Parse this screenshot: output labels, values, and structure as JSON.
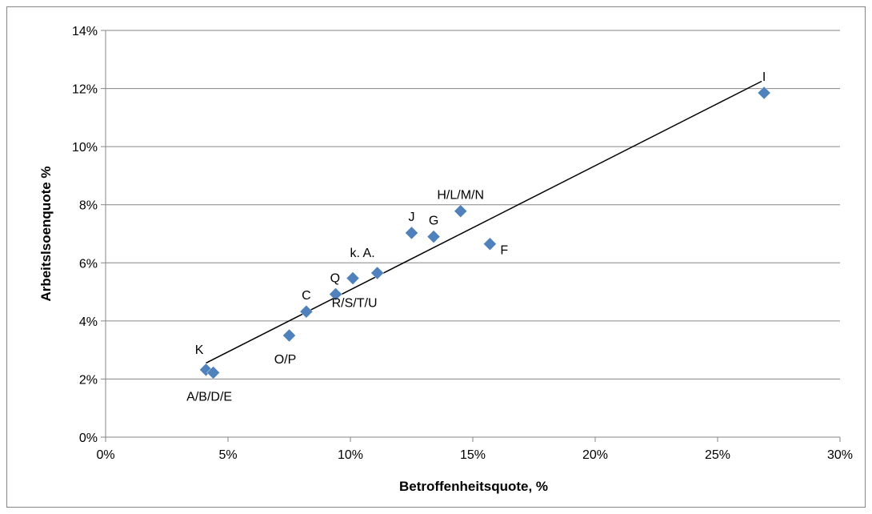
{
  "chart_data": {
    "type": "scatter",
    "xlabel": "Betroffenheitsquote, %",
    "ylabel": "Arbeitslsoenquote %",
    "xlim": [
      0,
      0.3
    ],
    "ylim": [
      0,
      0.14
    ],
    "xticks": [
      {
        "value": 0.0,
        "label": "0%"
      },
      {
        "value": 0.05,
        "label": "5%"
      },
      {
        "value": 0.1,
        "label": "10%"
      },
      {
        "value": 0.15,
        "label": "15%"
      },
      {
        "value": 0.2,
        "label": "20%"
      },
      {
        "value": 0.25,
        "label": "25%"
      },
      {
        "value": 0.3,
        "label": "30%"
      }
    ],
    "yticks": [
      {
        "value": 0.0,
        "label": "0%"
      },
      {
        "value": 0.02,
        "label": "2%"
      },
      {
        "value": 0.04,
        "label": "4%"
      },
      {
        "value": 0.06,
        "label": "6%"
      },
      {
        "value": 0.08,
        "label": "8%"
      },
      {
        "value": 0.1,
        "label": "10%"
      },
      {
        "value": 0.12,
        "label": "12%"
      },
      {
        "value": 0.14,
        "label": "14%"
      }
    ],
    "grid": "horizontal",
    "legend": "none",
    "marker_color": "#4F81BD",
    "trendline_color": "#000000",
    "points": [
      {
        "label": "K",
        "x": 0.041,
        "y": 0.0232,
        "label_pos": "above-left"
      },
      {
        "label": "A/B/D/E",
        "x": 0.044,
        "y": 0.0222,
        "label_pos": "below"
      },
      {
        "label": "O/P",
        "x": 0.075,
        "y": 0.035,
        "label_pos": "below"
      },
      {
        "label": "C",
        "x": 0.082,
        "y": 0.0432,
        "label_pos": "above"
      },
      {
        "label": "R/S/T/U",
        "x": 0.094,
        "y": 0.0492,
        "label_pos": "below-right"
      },
      {
        "label": "Q",
        "x": 0.101,
        "y": 0.0547,
        "label_pos": "left"
      },
      {
        "label": "k. A.",
        "x": 0.111,
        "y": 0.0565,
        "label_pos": "above-left"
      },
      {
        "label": "J",
        "x": 0.125,
        "y": 0.0703,
        "label_pos": "above"
      },
      {
        "label": "G",
        "x": 0.134,
        "y": 0.069,
        "label_pos": "above"
      },
      {
        "label": "H/L/M/N",
        "x": 0.145,
        "y": 0.0778,
        "label_pos": "above"
      },
      {
        "label": "F",
        "x": 0.157,
        "y": 0.0665,
        "label_pos": "right"
      },
      {
        "label": "I",
        "x": 0.269,
        "y": 0.1185,
        "label_pos": "above"
      }
    ],
    "trendline": {
      "type": "linear",
      "x_range": [
        0.041,
        0.268
      ],
      "y_range": [
        0.0255,
        0.1225
      ]
    }
  }
}
